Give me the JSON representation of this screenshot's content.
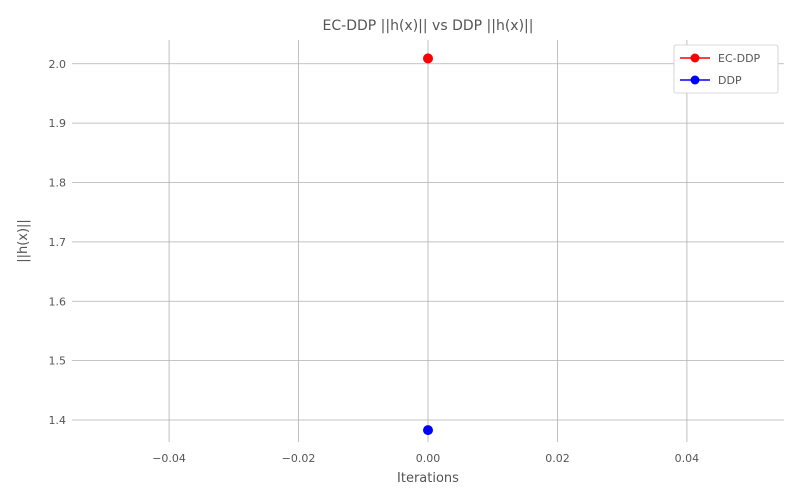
{
  "chart_data": {
    "type": "scatter",
    "title": "EC-DDP ||h(x)|| vs DDP ||h(x)||",
    "xlabel": "Iterations",
    "ylabel": "||h(x)||",
    "xlim": [
      -0.055,
      0.055
    ],
    "ylim": [
      1.363,
      2.04
    ],
    "xticks": [
      -0.04,
      -0.02,
      0.0,
      0.02,
      0.04
    ],
    "xtick_labels": [
      "−0.04",
      "−0.02",
      "0.00",
      "0.02",
      "0.04"
    ],
    "yticks": [
      1.4,
      1.5,
      1.6,
      1.7,
      1.8,
      1.9,
      2.0
    ],
    "ytick_labels": [
      "1.4",
      "1.5",
      "1.6",
      "1.7",
      "1.8",
      "1.9",
      "2.0"
    ],
    "grid": true,
    "legend_position": "top-right",
    "series": [
      {
        "name": "EC-DDP",
        "color": "#ff0000",
        "x": [
          0
        ],
        "y": [
          2.009
        ]
      },
      {
        "name": "DDP",
        "color": "#0000ff",
        "x": [
          0
        ],
        "y": [
          1.383
        ]
      }
    ]
  }
}
